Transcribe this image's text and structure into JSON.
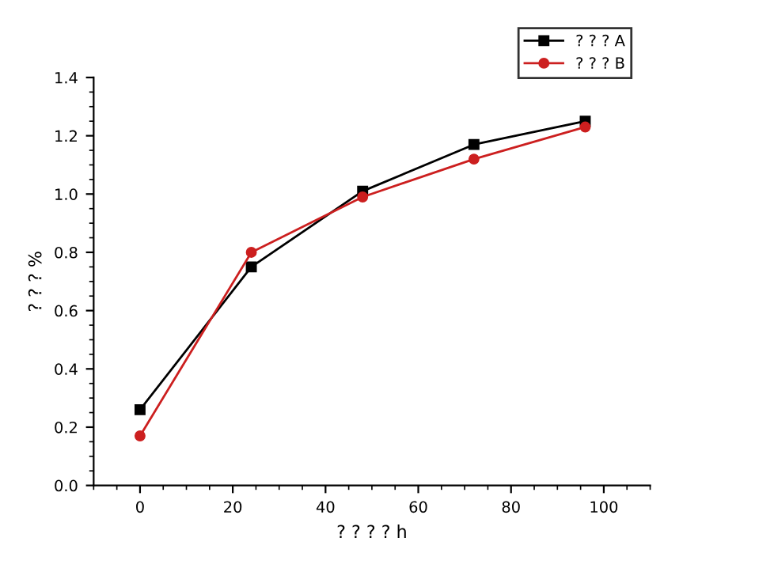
{
  "chart_data": {
    "type": "line",
    "xlabel": "? ? ? ? h",
    "ylabel": "? ? ? %",
    "x": [
      0,
      24,
      48,
      72,
      96
    ],
    "series": [
      {
        "name": "? ? ? A",
        "color": "#000000",
        "marker": "square",
        "values": [
          0.26,
          0.75,
          1.01,
          1.17,
          1.25
        ]
      },
      {
        "name": "? ? ? B",
        "color": "#cc1f1f",
        "marker": "circle",
        "values": [
          0.17,
          0.8,
          0.99,
          1.12,
          1.23
        ]
      }
    ],
    "xlim": [
      -10,
      110
    ],
    "xticks": [
      0,
      20,
      40,
      60,
      80,
      100
    ],
    "ylim": [
      0,
      1.4
    ],
    "yticks": [
      {
        "value": 0,
        "label": "0.0"
      },
      {
        "value": 0.2,
        "label": "0.2"
      },
      {
        "value": 0.4,
        "label": "0.4"
      },
      {
        "value": 0.6,
        "label": "0.6"
      },
      {
        "value": 0.8,
        "label": "0.8"
      },
      {
        "value": 1.0,
        "label": "1.0"
      },
      {
        "value": 1.2,
        "label": "1.2"
      },
      {
        "value": 1.4,
        "label": "1.4"
      }
    ],
    "grid": false,
    "legend": "top right",
    "line_style": "solid"
  }
}
